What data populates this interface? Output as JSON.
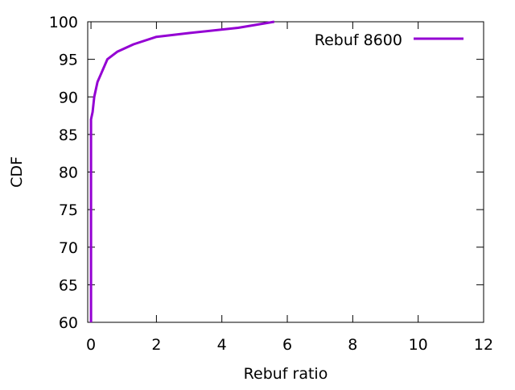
{
  "chart_data": {
    "type": "line",
    "title": "",
    "xlabel": "Rebuf ratio",
    "ylabel": "CDF",
    "xlim": [
      -0.1,
      12
    ],
    "ylim": [
      60,
      100
    ],
    "xticks": [
      "0",
      "2",
      "4",
      "6",
      "8",
      "10",
      "12"
    ],
    "yticks": [
      "60",
      "65",
      "70",
      "75",
      "80",
      "85",
      "90",
      "95",
      "100"
    ],
    "grid": false,
    "legend": "top-right",
    "series": [
      {
        "name": "Rebuf 8600",
        "color": "#9400d3",
        "x": [
          0,
          0,
          0,
          0.05,
          0.1,
          0.2,
          0.3,
          0.5,
          0.8,
          1.3,
          2.0,
          3.0,
          4.5,
          5.6
        ],
        "y": [
          60,
          80,
          87,
          88,
          90,
          92,
          93,
          95,
          96,
          97,
          98,
          98.5,
          99.2,
          100
        ]
      }
    ]
  }
}
